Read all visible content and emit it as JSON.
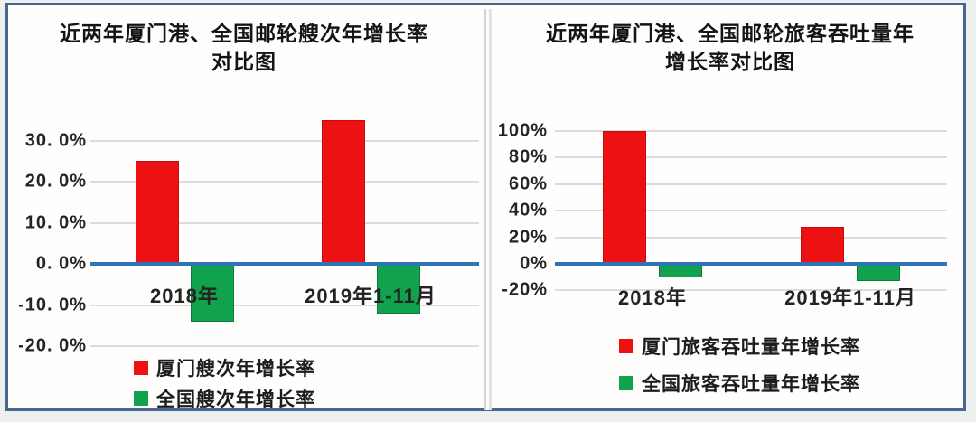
{
  "frame": {
    "border_color": "#44688f",
    "background": "#fffefc",
    "divider_color": "#d4d4d4"
  },
  "colors": {
    "xiamen_red": "#ee1111",
    "national_green": "#10a24c",
    "zero_axis_blue": "#2e75b6",
    "gridline_gray": "#dcdcdc",
    "text_dark": "#1c1c1c"
  },
  "chart_data": [
    {
      "type": "bar",
      "title": "近两年厦门港、全国邮轮艘次年增长率对比图",
      "title_lines": [
        "近两年厦门港、全国邮轮艘次年增长率",
        "对比图"
      ],
      "categories": [
        "2018年",
        "2019年1-11月"
      ],
      "series": [
        {
          "name": "厦门艘次年增长率",
          "color": "#ee1111",
          "border": "#c50b0b",
          "values": [
            25,
            35
          ]
        },
        {
          "name": "全国艘次年增长率",
          "color": "#10a24c",
          "border": "#0b7d3a",
          "values": [
            -14,
            -12
          ]
        }
      ],
      "yticks": [
        {
          "label": "30. 0%",
          "value": 30
        },
        {
          "label": "20. 0%",
          "value": 20
        },
        {
          "label": "10. 0%",
          "value": 10
        },
        {
          "label": "0. 0%",
          "value": 0
        },
        {
          "label": "-10. 0%",
          "value": -10
        },
        {
          "label": "-20. 0%",
          "value": -20
        }
      ],
      "ylim": [
        -22,
        38
      ],
      "xlabel": "",
      "ylabel": "",
      "grid": true,
      "legend_position": "bottom-left",
      "zero_axis_color": "#2e75b6"
    },
    {
      "type": "bar",
      "title": "近两年厦门港、全国邮轮旅客吞吐量年增长率对比图",
      "title_lines": [
        "近两年厦门港、全国邮轮旅客吞吐量年",
        "增长率对比图"
      ],
      "categories": [
        "2018年",
        "2019年1-11月"
      ],
      "series": [
        {
          "name": "厦门旅客吞吐量年增长率",
          "color": "#ee1111",
          "border": "#c50b0b",
          "values": [
            100,
            28
          ]
        },
        {
          "name": "全国旅客吞吐量年增长率",
          "color": "#10a24c",
          "border": "#0b7d3a",
          "values": [
            -10,
            -13
          ]
        }
      ],
      "yticks": [
        {
          "label": "100%",
          "value": 100
        },
        {
          "label": "80%",
          "value": 80
        },
        {
          "label": "60%",
          "value": 60
        },
        {
          "label": "40%",
          "value": 40
        },
        {
          "label": "20%",
          "value": 20
        },
        {
          "label": "0%",
          "value": 0
        },
        {
          "label": "-20%",
          "value": -20
        }
      ],
      "ylim": [
        -30,
        112
      ],
      "xlabel": "",
      "ylabel": "",
      "grid": true,
      "legend_position": "bottom-center",
      "zero_axis_color": "#2e75b6"
    }
  ]
}
